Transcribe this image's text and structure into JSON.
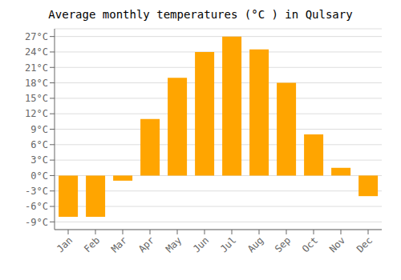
{
  "chart_data": {
    "type": "bar",
    "title": "Average monthly temperatures (°C ) in Qulsary",
    "categories": [
      "Jan",
      "Feb",
      "Mar",
      "Apr",
      "May",
      "Jun",
      "Jul",
      "Aug",
      "Sep",
      "Oct",
      "Nov",
      "Dec"
    ],
    "values": [
      -8,
      -8,
      -1,
      11,
      19,
      24,
      27,
      24.5,
      18,
      8,
      1.5,
      -4
    ],
    "color": "#FFA500",
    "ylim": [
      -10.5,
      28.5
    ],
    "yticks": [
      {
        "value": -9,
        "label": "-9°C"
      },
      {
        "value": -6,
        "label": "-6°C"
      },
      {
        "value": -3,
        "label": "-3°C"
      },
      {
        "value": 0,
        "label": "0°C"
      },
      {
        "value": 3,
        "label": "3°C"
      },
      {
        "value": 6,
        "label": "6°C"
      },
      {
        "value": 9,
        "label": "9°C"
      },
      {
        "value": 12,
        "label": "12°C"
      },
      {
        "value": 15,
        "label": "15°C"
      },
      {
        "value": 18,
        "label": "18°C"
      },
      {
        "value": 21,
        "label": "21°C"
      },
      {
        "value": 24,
        "label": "24°C"
      },
      {
        "value": 27,
        "label": "27°C"
      }
    ],
    "grid": true
  }
}
